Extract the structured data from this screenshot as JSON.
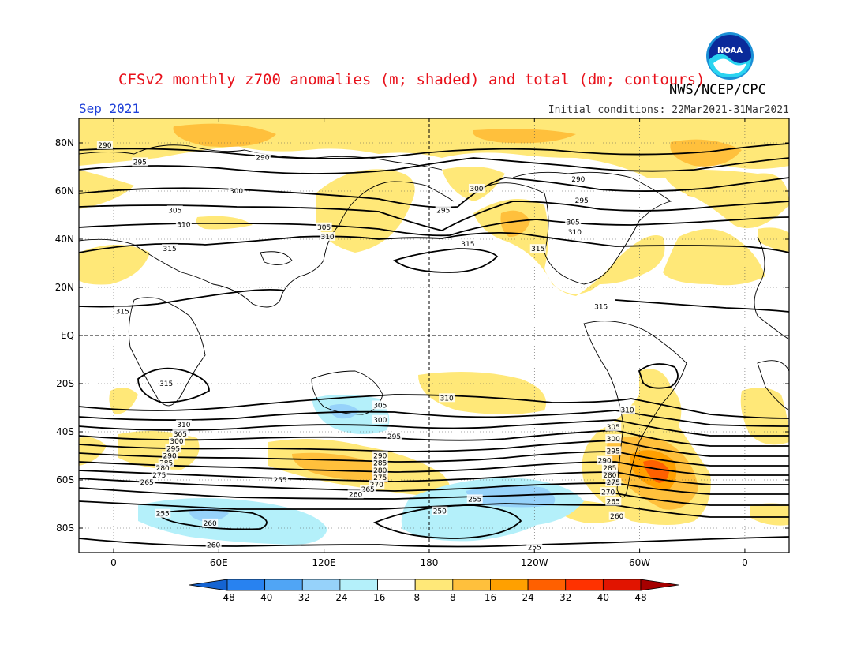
{
  "header": {
    "title": "CFSv2 monthly z700 anomalies (m; shaded) and total (dm; contours)",
    "agency": "NWS/NCEP/CPC",
    "month": "Sep 2021",
    "initial_conditions": "Initial conditions: 22Mar2021-31Mar2021",
    "logo_text": "NOAA"
  },
  "axes": {
    "lat_labels": [
      "80N",
      "60N",
      "40N",
      "20N",
      "EQ",
      "20S",
      "40S",
      "60S",
      "80S"
    ],
    "lon_labels": [
      "0",
      "60E",
      "120E",
      "180",
      "120W",
      "60W",
      "0"
    ]
  },
  "colorbar": {
    "ticks": [
      "-48",
      "-40",
      "-32",
      "-24",
      "-16",
      "-8",
      "8",
      "16",
      "24",
      "32",
      "40",
      "48"
    ],
    "colors": [
      "#1464d2",
      "#2882f0",
      "#50a5f5",
      "#96d2fa",
      "#b4f0fa",
      "#ffffff",
      "#ffe878",
      "#ffc03c",
      "#ffa000",
      "#ff6000",
      "#ff3200",
      "#e11400",
      "#a50000"
    ]
  },
  "contours": {
    "labels": [
      {
        "t": "290",
        "lon": -5,
        "lat": 79
      },
      {
        "t": "295",
        "lon": 15,
        "lat": 72
      },
      {
        "t": "290",
        "lon": 85,
        "lat": 74
      },
      {
        "t": "300",
        "lon": 70,
        "lat": 60
      },
      {
        "t": "305",
        "lon": 35,
        "lat": 52
      },
      {
        "t": "310",
        "lon": 40,
        "lat": 46
      },
      {
        "t": "315",
        "lon": 32,
        "lat": 36
      },
      {
        "t": "315",
        "lon": 5,
        "lat": 10
      },
      {
        "t": "315",
        "lon": 30,
        "lat": -20
      },
      {
        "t": "305",
        "lon": 120,
        "lat": 45
      },
      {
        "t": "310",
        "lon": 122,
        "lat": 41
      },
      {
        "t": "295",
        "lon": 188,
        "lat": 52
      },
      {
        "t": "300",
        "lon": 207,
        "lat": 61
      },
      {
        "t": "315",
        "lon": 202,
        "lat": 38
      },
      {
        "t": "290",
        "lon": 265,
        "lat": 65
      },
      {
        "t": "295",
        "lon": 267,
        "lat": 56
      },
      {
        "t": "305",
        "lon": 262,
        "lat": 47
      },
      {
        "t": "310",
        "lon": 263,
        "lat": 43
      },
      {
        "t": "315",
        "lon": 242,
        "lat": 36
      },
      {
        "t": "315",
        "lon": 278,
        "lat": 12
      },
      {
        "t": "310",
        "lon": 190,
        "lat": -26
      },
      {
        "t": "305",
        "lon": 152,
        "lat": -29
      },
      {
        "t": "300",
        "lon": 152,
        "lat": -35
      },
      {
        "t": "295",
        "lon": 160,
        "lat": -42
      },
      {
        "t": "290",
        "lon": 152,
        "lat": -50
      },
      {
        "t": "285",
        "lon": 152,
        "lat": -53
      },
      {
        "t": "280",
        "lon": 152,
        "lat": -56
      },
      {
        "t": "275",
        "lon": 152,
        "lat": -59
      },
      {
        "t": "270",
        "lon": 150,
        "lat": -62
      },
      {
        "t": "265",
        "lon": 145,
        "lat": -64
      },
      {
        "t": "260",
        "lon": 138,
        "lat": -66
      },
      {
        "t": "310",
        "lon": 40,
        "lat": -37
      },
      {
        "t": "305",
        "lon": 38,
        "lat": -41
      },
      {
        "t": "300",
        "lon": 36,
        "lat": -44
      },
      {
        "t": "295",
        "lon": 34,
        "lat": -47
      },
      {
        "t": "290",
        "lon": 32,
        "lat": -50
      },
      {
        "t": "285",
        "lon": 30,
        "lat": -53
      },
      {
        "t": "280",
        "lon": 28,
        "lat": -55
      },
      {
        "t": "275",
        "lon": 26,
        "lat": -58
      },
      {
        "t": "265",
        "lon": 19,
        "lat": -61
      },
      {
        "t": "255",
        "lon": 95,
        "lat": -60
      },
      {
        "t": "255",
        "lon": 28,
        "lat": -74
      },
      {
        "t": "260",
        "lon": 55,
        "lat": -78
      },
      {
        "t": "260",
        "lon": 57,
        "lat": -87
      },
      {
        "t": "250",
        "lon": 186,
        "lat": -73
      },
      {
        "t": "255",
        "lon": 206,
        "lat": -68
      },
      {
        "t": "255",
        "lon": 240,
        "lat": -88
      },
      {
        "t": "310",
        "lon": 293,
        "lat": -31
      },
      {
        "t": "305",
        "lon": 285,
        "lat": -38
      },
      {
        "t": "300",
        "lon": 285,
        "lat": -43
      },
      {
        "t": "295",
        "lon": 285,
        "lat": -48
      },
      {
        "t": "290",
        "lon": 280,
        "lat": -52
      },
      {
        "t": "285",
        "lon": 283,
        "lat": -55
      },
      {
        "t": "280",
        "lon": 283,
        "lat": -58
      },
      {
        "t": "275",
        "lon": 285,
        "lat": -61
      },
      {
        "t": "270",
        "lon": 282,
        "lat": -65
      },
      {
        "t": "265",
        "lon": 285,
        "lat": -69
      },
      {
        "t": "260",
        "lon": 287,
        "lat": -75
      }
    ]
  }
}
